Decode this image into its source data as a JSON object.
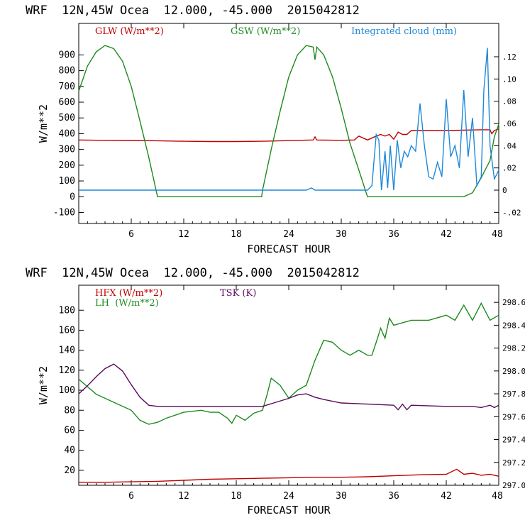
{
  "colors": {
    "glw": "#c00000",
    "gsw": "#1e8a1e",
    "cloud": "#1e88d8",
    "hfx": "#c00000",
    "lh": "#1e8a1e",
    "tsk": "#5a0a5a"
  },
  "chart_data": [
    {
      "type": "line",
      "header": "WRF  12N,45W Ocea  12.000, -45.000  2015042812",
      "xlabel": "FORECAST HOUR",
      "ylabel": "W/m**2",
      "xlim": [
        0,
        48
      ],
      "ylim": [
        -170,
        1100
      ],
      "y2lim": [
        -0.03,
        0.15
      ],
      "xticks": [
        "6",
        "12",
        "18",
        "24",
        "30",
        "36",
        "42",
        "48"
      ],
      "yticks": [
        "-100",
        "0",
        "100",
        "200",
        "300",
        "400",
        "500",
        "600",
        "700",
        "800",
        "900"
      ],
      "y2ticks": [
        "-.02",
        "0",
        ".02",
        ".04",
        ".06",
        ".08",
        ".10",
        ".12"
      ],
      "legend": [
        "GLW (W/m**2)",
        "GSW (W/m**2)",
        "Integrated cloud (mm)"
      ],
      "series": [
        {
          "name": "GLW (W/m**2)",
          "axis": "left",
          "x": [
            0,
            3,
            6,
            9,
            12,
            15,
            18,
            21,
            24,
            26.8,
            27,
            27.2,
            30,
            31.5,
            32,
            33,
            34,
            34.5,
            35,
            35.5,
            36,
            36.5,
            37,
            37.5,
            38,
            42,
            46,
            47,
            47.2,
            47.5,
            48
          ],
          "y": [
            360,
            358,
            357,
            355,
            352,
            350,
            350,
            352,
            356,
            360,
            380,
            360,
            358,
            360,
            385,
            360,
            385,
            395,
            385,
            395,
            365,
            410,
            395,
            395,
            420,
            420,
            425,
            425,
            400,
            420,
            430
          ]
        },
        {
          "name": "GSW (W/m**2)",
          "axis": "left",
          "x": [
            0,
            1,
            2,
            3,
            4,
            5,
            6,
            7,
            8,
            9,
            10,
            20.9,
            21,
            22,
            23,
            24,
            25,
            26,
            26.8,
            27,
            27.2,
            28,
            29,
            30,
            31,
            32,
            33,
            44,
            45,
            46,
            47,
            47.5,
            48
          ],
          "y": [
            670,
            830,
            920,
            960,
            940,
            860,
            700,
            480,
            250,
            0,
            0,
            0,
            40,
            300,
            540,
            760,
            900,
            960,
            950,
            870,
            950,
            900,
            760,
            560,
            340,
            170,
            0,
            0,
            25,
            120,
            230,
            380,
            460
          ]
        },
        {
          "name": "Integrated cloud (mm)",
          "axis": "right",
          "x": [
            0,
            26,
            26.6,
            27,
            33,
            33.5,
            34,
            34.3,
            34.6,
            35,
            35.3,
            35.6,
            36,
            36.4,
            36.8,
            37.2,
            37.6,
            38,
            38.5,
            39,
            39.5,
            40,
            40.5,
            41,
            41.5,
            42,
            42.5,
            43,
            43.5,
            44,
            44.5,
            45,
            45.5,
            46,
            46.3,
            46.7,
            47,
            47.5,
            48
          ],
          "y": [
            0,
            0,
            0.002,
            0,
            0,
            0.004,
            0.05,
            0.045,
            0,
            0.035,
            0.002,
            0.04,
            0,
            0.045,
            0.02,
            0.035,
            0.03,
            0.04,
            0.035,
            0.078,
            0.04,
            0.012,
            0.01,
            0.025,
            0.012,
            0.082,
            0.03,
            0.04,
            0.02,
            0.09,
            0.03,
            0.065,
            0.004,
            0.012,
            0.09,
            0.128,
            0.04,
            0.01,
            0.018
          ]
        }
      ]
    },
    {
      "type": "line",
      "header": "WRF  12N,45W Ocea  12.000, -45.000  2015042812",
      "xlabel": "FORECAST HOUR",
      "ylabel": "W/m**2",
      "xlim": [
        0,
        48
      ],
      "ylim": [
        5,
        205
      ],
      "y2lim": [
        297.0,
        298.75
      ],
      "xticks": [
        "6",
        "12",
        "18",
        "24",
        "30",
        "36",
        "42",
        "48"
      ],
      "yticks": [
        "20",
        "40",
        "60",
        "80",
        "100",
        "120",
        "140",
        "160",
        "180"
      ],
      "y2ticks": [
        "297.0",
        "297.2",
        "297.4",
        "297.6",
        "297.8",
        "298.0",
        "298.2",
        "298.4",
        "298.6"
      ],
      "legend": [
        "HFX (W/m**2)",
        "LH  (W/m**2)",
        "TSK (K)"
      ],
      "series": [
        {
          "name": "HFX (W/m**2)",
          "axis": "left",
          "x": [
            0,
            3,
            6,
            9,
            12,
            15,
            18,
            21,
            24,
            27,
            30,
            33,
            36,
            39,
            42,
            43.2,
            44,
            45,
            46,
            47,
            48
          ],
          "y": [
            8,
            8,
            8.5,
            9,
            10,
            11,
            11.5,
            12,
            12.5,
            13,
            13,
            13.5,
            14.5,
            15.5,
            16,
            21,
            16,
            17,
            15,
            16,
            14
          ]
        },
        {
          "name": "LH  (W/m**2)",
          "axis": "left",
          "x": [
            0,
            2,
            4,
            6,
            7,
            8,
            9,
            10,
            12,
            14,
            15,
            16,
            17,
            17.5,
            18,
            19,
            20,
            21,
            21.5,
            22,
            23,
            24,
            25,
            26,
            27,
            28,
            29,
            30,
            31,
            32,
            33,
            33.5,
            34,
            34.5,
            35,
            35.5,
            36,
            38,
            40,
            42,
            43,
            44,
            45,
            46,
            47,
            48
          ],
          "y": [
            111,
            96,
            88,
            80,
            70,
            66,
            68,
            72,
            78,
            80,
            78,
            78,
            72,
            67,
            75,
            70,
            77,
            80,
            95,
            112,
            105,
            92,
            100,
            105,
            130,
            150,
            148,
            140,
            135,
            140,
            135,
            135,
            148,
            162,
            152,
            172,
            165,
            170,
            170,
            175,
            170,
            185,
            170,
            187,
            170,
            175
          ]
        },
        {
          "name": "TSK (K)",
          "axis": "right",
          "x": [
            0,
            1,
            2,
            3,
            4,
            5,
            6,
            7,
            8,
            9,
            12,
            15,
            18,
            21,
            24,
            25,
            26,
            27,
            28,
            30,
            33,
            36,
            36.5,
            37,
            37.5,
            38,
            42,
            45,
            46,
            47,
            47.5,
            48
          ],
          "y": [
            297.8,
            297.87,
            297.95,
            298.02,
            298.06,
            298.0,
            297.88,
            297.77,
            297.7,
            297.69,
            297.69,
            297.69,
            297.69,
            297.69,
            297.76,
            297.79,
            297.8,
            297.77,
            297.75,
            297.72,
            297.71,
            297.7,
            297.66,
            297.71,
            297.66,
            297.7,
            297.69,
            297.69,
            297.68,
            297.7,
            297.68,
            297.7
          ]
        }
      ]
    }
  ]
}
